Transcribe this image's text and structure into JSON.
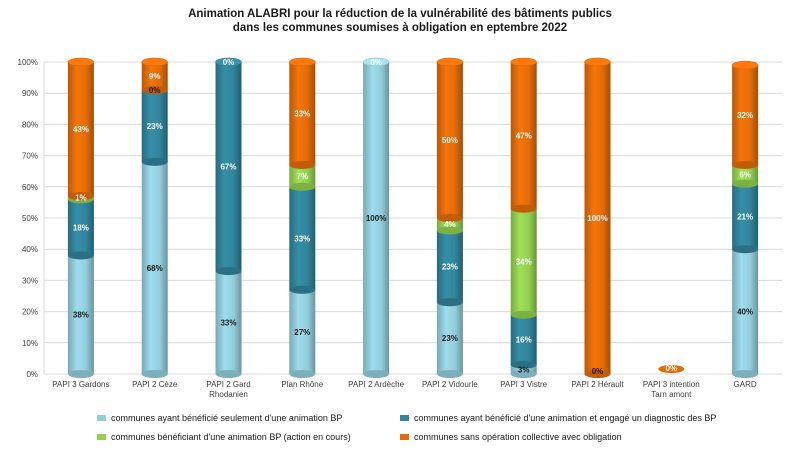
{
  "chart_data": {
    "type": "bar",
    "stacked": true,
    "title_lines": [
      "Animation ALABRI pour la réduction de la vulnérabilité des bâtiments publics",
      "dans les communes soumises à obligation en eptembre 2022"
    ],
    "categories": [
      "PAPI 3 Gardons",
      "PAPI 2 Cèze",
      "PAPI 2 Gard Rhodanien",
      "Plan Rhône",
      "PAPI 2 Ardèche",
      "PAPI 2 Vidourle",
      "PAPI 3 Vistre",
      "PAPI 2 Hérault",
      "PAPI 3 intention Tarn amont",
      "GARD"
    ],
    "category_lines": [
      [
        "PAPI 3 Gardons"
      ],
      [
        "PAPI 2 Cèze"
      ],
      [
        "PAPI 2 Gard",
        "Rhodanien"
      ],
      [
        "Plan Rhône"
      ],
      [
        "PAPI 2 Ardèche"
      ],
      [
        "PAPI 2 Vidourle"
      ],
      [
        "PAPI 3 Vistre"
      ],
      [
        "PAPI 2 Hérault"
      ],
      [
        "PAPI 3 intention",
        "Tarn amont"
      ],
      [
        "GARD"
      ]
    ],
    "series": [
      {
        "name": "communes ayant bénéficié seulement d'une animation BP",
        "color": "#92CDDC",
        "values": [
          38,
          68,
          33,
          27,
          100,
          23,
          3,
          0,
          0,
          40
        ],
        "labels": [
          "38%",
          "68%",
          "33%",
          "27%",
          "100%",
          "23%",
          "3%",
          "",
          "",
          "40%"
        ]
      },
      {
        "name": "communes ayant bénéficié d'une animation et engagé un diagnostic des BP",
        "color": "#31849B",
        "values": [
          18,
          23,
          67,
          33,
          0,
          23,
          16,
          0,
          0,
          21
        ],
        "labels": [
          "18%",
          "23%",
          "67%",
          "33%",
          "",
          "23%",
          "16%",
          "",
          "",
          "21%"
        ]
      },
      {
        "name": "communes bénéficiant d'une animation BP (action en cours)",
        "color": "#92D050",
        "values": [
          1,
          0,
          0,
          7,
          0,
          4,
          34,
          0,
          0,
          6
        ],
        "labels": [
          "1%",
          "",
          "",
          "7%",
          "",
          "4%",
          "34%",
          "",
          "",
          "6%"
        ]
      },
      {
        "name": "communes sans opération collective avec obligation",
        "color": "#E36C09",
        "values": [
          43,
          9,
          0,
          33,
          0,
          50,
          47,
          100,
          0,
          32
        ],
        "labels": [
          "43%",
          "9%",
          "0%",
          "33%",
          "0%",
          "50%",
          "47%",
          "100%",
          "0%",
          "32%"
        ]
      }
    ],
    "extra_labels": [
      {
        "category": 1,
        "text": "0%",
        "at": 91
      },
      {
        "category": 7,
        "text": "0%",
        "at": 1
      }
    ],
    "y_ticks": [
      "0%",
      "10%",
      "20%",
      "30%",
      "40%",
      "50%",
      "60%",
      "70%",
      "80%",
      "90%",
      "100%"
    ],
    "ylim": [
      0,
      100
    ],
    "grid": true,
    "legend_position": "bottom"
  }
}
